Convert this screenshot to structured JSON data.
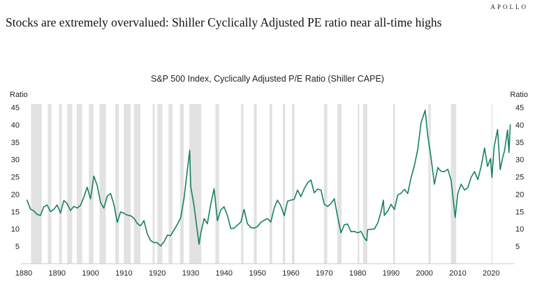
{
  "brand": {
    "logo_text": "APOLLO"
  },
  "headline": "Stocks are extremely overvalued: Shiller Cyclically Adjusted PE ratio near all-time highs",
  "chart_data": {
    "type": "line",
    "title": "S&P 500 Index, Cyclically Adjusted P/E Ratio (Shiller CAPE)",
    "ylabel_left": "Ratio",
    "ylabel_right": "Ratio",
    "xlabel": "",
    "xlim": [
      1880,
      2026
    ],
    "ylim": [
      0,
      46
    ],
    "x_ticks": [
      1880,
      1890,
      1900,
      1910,
      1920,
      1930,
      1940,
      1950,
      1960,
      1970,
      1980,
      1990,
      2000,
      2010,
      2020
    ],
    "y_ticks": [
      5,
      10,
      15,
      20,
      25,
      30,
      35,
      40,
      45
    ],
    "grid": false,
    "legend": "none",
    "line_color": "#17815f",
    "recession_band_color": "#e2e2e2",
    "axis_line_color": "#c8c8c8",
    "recession_bands": [
      [
        1882.2,
        1885.4
      ],
      [
        1887.2,
        1888.3
      ],
      [
        1890.6,
        1891.4
      ],
      [
        1893.0,
        1894.5
      ],
      [
        1895.9,
        1897.5
      ],
      [
        1899.5,
        1900.9
      ],
      [
        1902.7,
        1904.6
      ],
      [
        1907.4,
        1908.5
      ],
      [
        1910.0,
        1912.0
      ],
      [
        1913.0,
        1914.9
      ],
      [
        1918.6,
        1919.2
      ],
      [
        1920.0,
        1921.5
      ],
      [
        1923.4,
        1924.5
      ],
      [
        1926.8,
        1927.9
      ],
      [
        1929.6,
        1933.2
      ],
      [
        1937.4,
        1938.5
      ],
      [
        1945.1,
        1945.8
      ],
      [
        1948.9,
        1949.8
      ],
      [
        1953.6,
        1954.4
      ],
      [
        1957.6,
        1958.3
      ],
      [
        1960.3,
        1961.1
      ],
      [
        1969.9,
        1970.9
      ],
      [
        1973.9,
        1975.2
      ],
      [
        1980.0,
        1980.5
      ],
      [
        1981.6,
        1982.9
      ],
      [
        1990.6,
        1991.2
      ],
      [
        2001.2,
        2001.9
      ],
      [
        2007.9,
        2009.5
      ],
      [
        2020.1,
        2020.4
      ]
    ],
    "series": [
      {
        "name": "Shiller CAPE ratio",
        "points": [
          [
            1881,
            18.3
          ],
          [
            1882,
            15.7
          ],
          [
            1883,
            15.2
          ],
          [
            1884,
            14.2
          ],
          [
            1885,
            13.9
          ],
          [
            1886,
            16.4
          ],
          [
            1887,
            16.9
          ],
          [
            1888,
            15.0
          ],
          [
            1889,
            15.6
          ],
          [
            1890,
            16.9
          ],
          [
            1891,
            14.6
          ],
          [
            1892,
            18.2
          ],
          [
            1893,
            17.3
          ],
          [
            1894,
            15.3
          ],
          [
            1895,
            16.5
          ],
          [
            1896,
            16.0
          ],
          [
            1897,
            16.8
          ],
          [
            1898,
            19.2
          ],
          [
            1899,
            22.0
          ],
          [
            1900,
            18.7
          ],
          [
            1901,
            25.2
          ],
          [
            1902,
            22.5
          ],
          [
            1903,
            17.6
          ],
          [
            1904,
            16.0
          ],
          [
            1905,
            19.4
          ],
          [
            1906,
            20.2
          ],
          [
            1907,
            17.1
          ],
          [
            1908,
            11.9
          ],
          [
            1909,
            14.9
          ],
          [
            1910,
            14.5
          ],
          [
            1911,
            14.0
          ],
          [
            1912,
            13.8
          ],
          [
            1913,
            13.1
          ],
          [
            1914,
            11.6
          ],
          [
            1915,
            10.9
          ],
          [
            1916,
            12.4
          ],
          [
            1917,
            8.6
          ],
          [
            1918,
            6.6
          ],
          [
            1919,
            6.1
          ],
          [
            1920,
            6.0
          ],
          [
            1921,
            5.1
          ],
          [
            1922,
            6.3
          ],
          [
            1923,
            8.2
          ],
          [
            1924,
            8.1
          ],
          [
            1925,
            9.7
          ],
          [
            1926,
            11.3
          ],
          [
            1927,
            13.2
          ],
          [
            1928,
            18.8
          ],
          [
            1929,
            27.1
          ],
          [
            1929.7,
            32.6
          ],
          [
            1930,
            22.3
          ],
          [
            1931,
            16.7
          ],
          [
            1932.5,
            5.6
          ],
          [
            1933,
            8.7
          ],
          [
            1934,
            13.0
          ],
          [
            1935,
            11.5
          ],
          [
            1936,
            17.1
          ],
          [
            1937,
            21.6
          ],
          [
            1938,
            12.4
          ],
          [
            1939,
            15.5
          ],
          [
            1940,
            16.4
          ],
          [
            1941,
            13.9
          ],
          [
            1942,
            10.1
          ],
          [
            1943,
            10.2
          ],
          [
            1944,
            11.1
          ],
          [
            1945,
            12.0
          ],
          [
            1946,
            15.6
          ],
          [
            1947,
            11.5
          ],
          [
            1948,
            10.4
          ],
          [
            1949,
            10.2
          ],
          [
            1950,
            10.7
          ],
          [
            1951,
            11.9
          ],
          [
            1952,
            12.5
          ],
          [
            1953,
            13.0
          ],
          [
            1954,
            12.0
          ],
          [
            1955,
            16.0
          ],
          [
            1956,
            18.3
          ],
          [
            1957,
            16.7
          ],
          [
            1958,
            13.8
          ],
          [
            1959,
            18.0
          ],
          [
            1960,
            18.3
          ],
          [
            1961,
            18.5
          ],
          [
            1962,
            21.2
          ],
          [
            1963,
            19.3
          ],
          [
            1964,
            21.6
          ],
          [
            1965,
            23.3
          ],
          [
            1966,
            24.1
          ],
          [
            1967,
            20.4
          ],
          [
            1968,
            21.5
          ],
          [
            1969,
            21.2
          ],
          [
            1970,
            17.1
          ],
          [
            1971,
            16.5
          ],
          [
            1972,
            17.3
          ],
          [
            1973,
            18.7
          ],
          [
            1974,
            13.5
          ],
          [
            1975,
            8.9
          ],
          [
            1976,
            11.2
          ],
          [
            1977,
            11.4
          ],
          [
            1978,
            9.2
          ],
          [
            1979,
            9.3
          ],
          [
            1980,
            8.9
          ],
          [
            1981,
            9.3
          ],
          [
            1982,
            7.4
          ],
          [
            1982.7,
            6.6
          ],
          [
            1983,
            9.8
          ],
          [
            1984,
            9.9
          ],
          [
            1985,
            10.0
          ],
          [
            1986,
            11.7
          ],
          [
            1987,
            14.9
          ],
          [
            1987.7,
            18.3
          ],
          [
            1988,
            13.9
          ],
          [
            1989,
            15.1
          ],
          [
            1990,
            17.1
          ],
          [
            1991,
            15.6
          ],
          [
            1992,
            19.8
          ],
          [
            1993,
            20.3
          ],
          [
            1994,
            21.4
          ],
          [
            1995,
            20.2
          ],
          [
            1996,
            24.8
          ],
          [
            1997,
            28.3
          ],
          [
            1998,
            32.9
          ],
          [
            1999,
            40.6
          ],
          [
            2000.2,
            44.2
          ],
          [
            2001,
            36.8
          ],
          [
            2002,
            30.3
          ],
          [
            2003,
            22.9
          ],
          [
            2004,
            27.7
          ],
          [
            2005,
            26.6
          ],
          [
            2006,
            26.5
          ],
          [
            2007,
            27.2
          ],
          [
            2008,
            24.0
          ],
          [
            2009.2,
            13.3
          ],
          [
            2010,
            20.3
          ],
          [
            2011,
            22.9
          ],
          [
            2012,
            21.2
          ],
          [
            2013,
            21.9
          ],
          [
            2014,
            24.9
          ],
          [
            2015,
            26.5
          ],
          [
            2016,
            24.2
          ],
          [
            2017,
            28.1
          ],
          [
            2018,
            33.3
          ],
          [
            2018.9,
            28.0
          ],
          [
            2019.8,
            30.3
          ],
          [
            2020.2,
            24.8
          ],
          [
            2020.9,
            33.8
          ],
          [
            2021.9,
            38.6
          ],
          [
            2022.7,
            27.1
          ],
          [
            2023.5,
            30.8
          ],
          [
            2024.0,
            32.5
          ],
          [
            2024.9,
            38.5
          ],
          [
            2025.3,
            32.0
          ],
          [
            2025.7,
            40.0
          ]
        ]
      }
    ]
  }
}
